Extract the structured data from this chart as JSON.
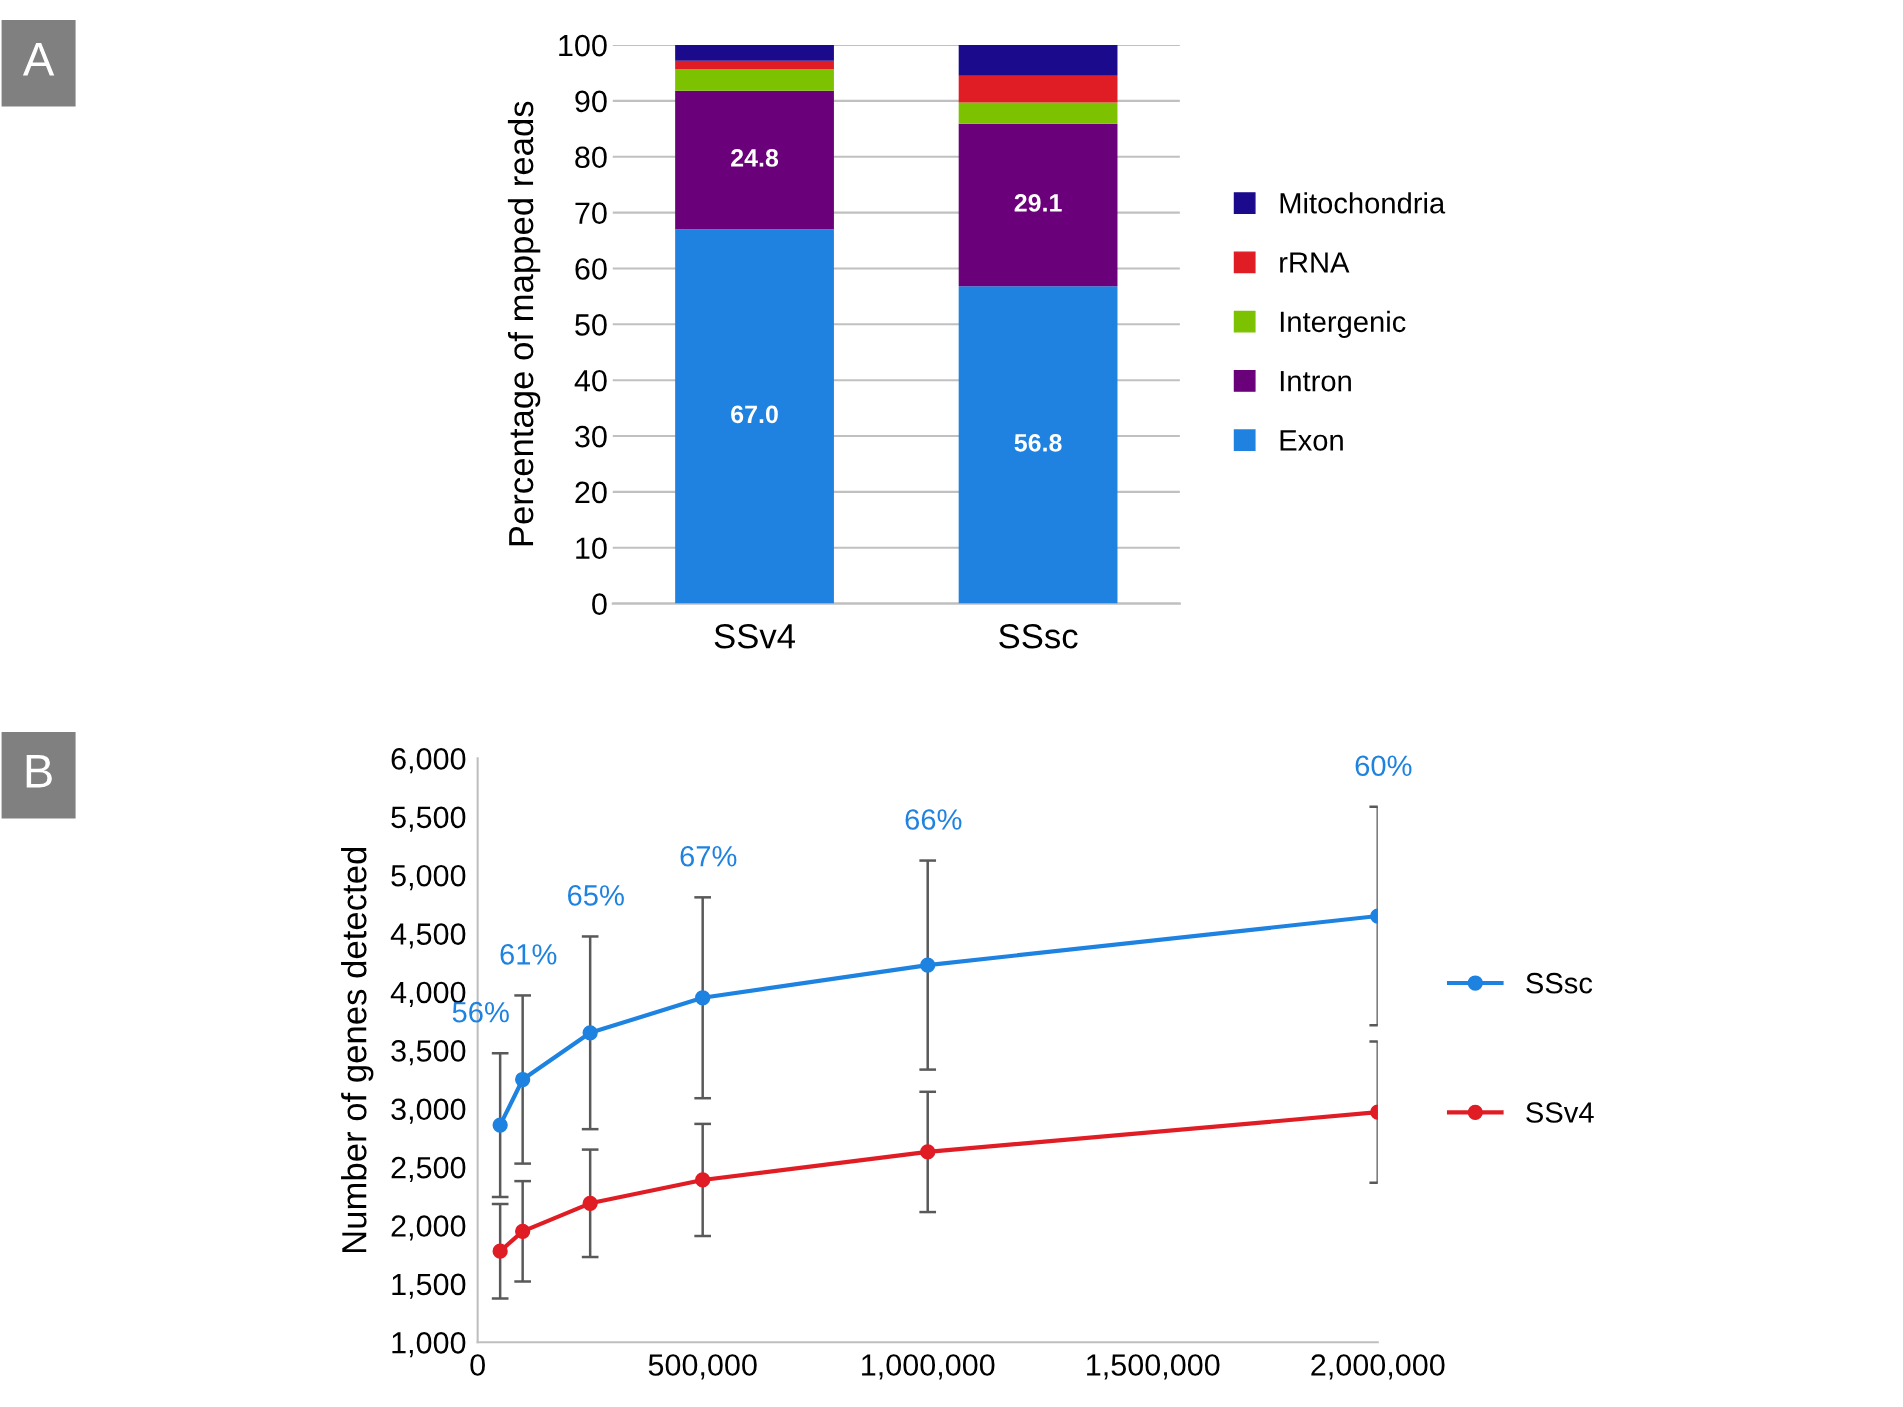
{
  "chart_data": [
    {
      "type": "bar",
      "stacked": true,
      "ylabel": "Percentage of mapped reads",
      "categories": [
        "SSv4",
        "SSsc"
      ],
      "series": [
        {
          "name": "Exon",
          "color": "#1f82e0",
          "values": [
            67.0,
            56.8
          ],
          "value_labels": [
            "67.0",
            "56.8"
          ]
        },
        {
          "name": "Intron",
          "color": "#6b007b",
          "values": [
            24.8,
            29.1
          ],
          "value_labels": [
            "24.8",
            "29.1"
          ]
        },
        {
          "name": "Intergenic",
          "color": "#7dc200",
          "values": [
            3.9,
            3.8
          ]
        },
        {
          "name": "rRNA",
          "color": "#e01c24",
          "values": [
            1.5,
            4.8
          ]
        },
        {
          "name": "Mitochondria",
          "color": "#1c0a8c",
          "values": [
            2.8,
            5.5
          ]
        }
      ],
      "ylim": [
        0,
        100
      ],
      "yticks": [
        0,
        10,
        20,
        30,
        40,
        50,
        60,
        70,
        80,
        90,
        100
      ],
      "grid": "y",
      "legend": "right",
      "annotations": [
        "A"
      ]
    },
    {
      "type": "line",
      "ylabel": "Number of genes detected",
      "marker": "circle",
      "x": [
        50000,
        100000,
        250000,
        500000,
        1000000,
        2000000
      ],
      "series": [
        {
          "name": "SSsc",
          "color": "#1e82e0",
          "values": [
            2860,
            3250,
            3650,
            3950,
            4230,
            4650
          ],
          "errors": [
            615,
            720,
            825,
            860,
            895,
            935
          ]
        },
        {
          "name": "SSv4",
          "color": "#e01c24",
          "values": [
            1780,
            1950,
            2190,
            2390,
            2630,
            2970
          ],
          "errors": [
            405,
            430,
            460,
            480,
            515,
            605
          ]
        }
      ],
      "xlim": [
        0,
        2000000
      ],
      "xticks": [
        0,
        {
          "value": 500000,
          "label": "500,000"
        },
        {
          "value": 1000000,
          "label": "1,000,000"
        },
        {
          "value": 1500000,
          "label": "1,500,000"
        },
        {
          "value": 2000000,
          "label": "2,000,000"
        }
      ],
      "ylim": [
        1000,
        6000
      ],
      "yticks": [
        {
          "value": 1000,
          "label": "1,000"
        },
        {
          "value": 1500,
          "label": "1,500"
        },
        {
          "value": 2000,
          "label": "2,000"
        },
        {
          "value": 2500,
          "label": "2,500"
        },
        {
          "value": 3000,
          "label": "3,000"
        },
        {
          "value": 3500,
          "label": "3,500"
        },
        {
          "value": 4000,
          "label": "4,000"
        },
        {
          "value": 4500,
          "label": "4,500"
        },
        {
          "value": 5000,
          "label": "5,000"
        },
        {
          "value": 5500,
          "label": "5,500"
        },
        {
          "value": 6000,
          "label": "6,000"
        }
      ],
      "grid": false,
      "legend": "right",
      "annotations": [
        "B",
        "56%",
        "61%",
        "65%",
        "67%",
        "66%",
        "60%"
      ]
    }
  ]
}
